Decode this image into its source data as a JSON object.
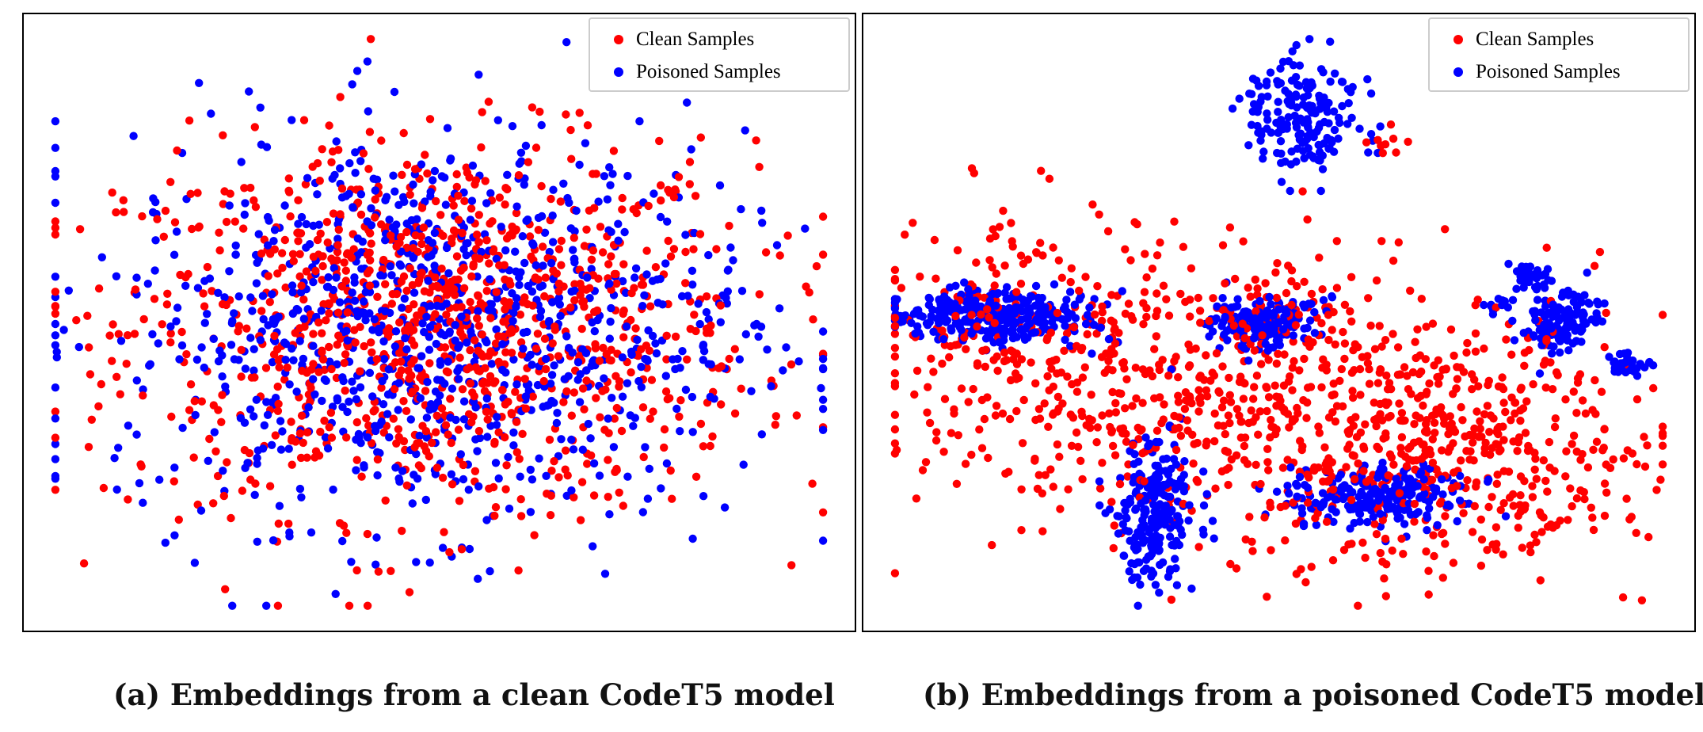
{
  "figure": {
    "captions": [
      "(a) Embeddings from a clean CodeT5 model",
      "(b) Embeddings from a poisoned CodeT5 model"
    ],
    "legend": [
      "Clean Samples",
      "Poisoned Samples"
    ],
    "colors": {
      "clean": "#ff0000",
      "poisoned": "#0000ff"
    }
  },
  "chart_data": [
    {
      "type": "scatter",
      "title": "(a) Embeddings from a clean CodeT5 model",
      "xlabel": "",
      "ylabel": "",
      "axes_ticks": "none",
      "grid": false,
      "legend_position": "top-right",
      "xlim": [
        0,
        100
      ],
      "ylim": [
        0,
        100
      ],
      "series": [
        {
          "name": "Clean Samples",
          "color": "#ff0000",
          "distribution": "one ellipse mixed with poisoned samples",
          "clusters": [
            {
              "cx": 50,
              "cy": 49,
              "sx": 20,
              "sy": 16,
              "n": 1100
            }
          ]
        },
        {
          "name": "Poisoned Samples",
          "color": "#0000ff",
          "distribution": "one ellipse mixed with clean samples",
          "clusters": [
            {
              "cx": 49,
              "cy": 49,
              "sx": 20,
              "sy": 17,
              "n": 1000
            }
          ]
        }
      ]
    },
    {
      "type": "scatter",
      "title": "(b) Embeddings from a poisoned CodeT5 model",
      "xlabel": "",
      "ylabel": "",
      "axes_ticks": "none",
      "grid": false,
      "legend_position": "top-right",
      "xlim": [
        0,
        100
      ],
      "ylim": [
        0,
        100
      ],
      "series": [
        {
          "name": "Clean Samples",
          "color": "#ff0000",
          "distribution": "wide diffuse cloud",
          "clusters": [
            {
              "cx": 32,
              "cy": 40,
              "sx": 16,
              "sy": 12,
              "n": 450
            },
            {
              "cx": 62,
              "cy": 33,
              "sx": 15,
              "sy": 12,
              "n": 450
            },
            {
              "cx": 78,
              "cy": 25,
              "sx": 11,
              "sy": 9,
              "n": 180
            },
            {
              "cx": 14,
              "cy": 49,
              "sx": 8,
              "sy": 12,
              "n": 70
            },
            {
              "cx": 64,
              "cy": 81,
              "sx": 1.1,
              "sy": 1.1,
              "n": 10
            },
            {
              "cx": 50,
              "cy": 52,
              "sx": 4,
              "sy": 3.5,
              "n": 50
            }
          ]
        },
        {
          "name": "Poisoned Samples",
          "color": "#0000ff",
          "distribution": "tight separated clusters",
          "clusters": [
            {
              "cx": 14,
              "cy": 51,
              "sx": 6.5,
              "sy": 2.2,
              "n": 280
            },
            {
              "cx": 48,
              "cy": 50,
              "sx": 3.5,
              "sy": 2.2,
              "n": 170
            },
            {
              "cx": 53,
              "cy": 86,
              "sx": 3.5,
              "sy": 5,
              "n": 180
            },
            {
              "cx": 34,
              "cy": 17,
              "sx": 2.6,
              "sy": 6.5,
              "n": 230
            },
            {
              "cx": 63,
              "cy": 20,
              "sx": 5.5,
              "sy": 2.8,
              "n": 220
            },
            {
              "cx": 86,
              "cy": 50,
              "sx": 2.4,
              "sy": 2.6,
              "n": 120
            },
            {
              "cx": 94,
              "cy": 43,
              "sx": 1.6,
              "sy": 1.0,
              "n": 35
            },
            {
              "cx": 82,
              "cy": 58,
              "sx": 1.6,
              "sy": 1.2,
              "n": 30
            },
            {
              "cx": 78,
              "cy": 53,
              "sx": 1.0,
              "sy": 0.8,
              "n": 12
            }
          ]
        }
      ]
    }
  ]
}
